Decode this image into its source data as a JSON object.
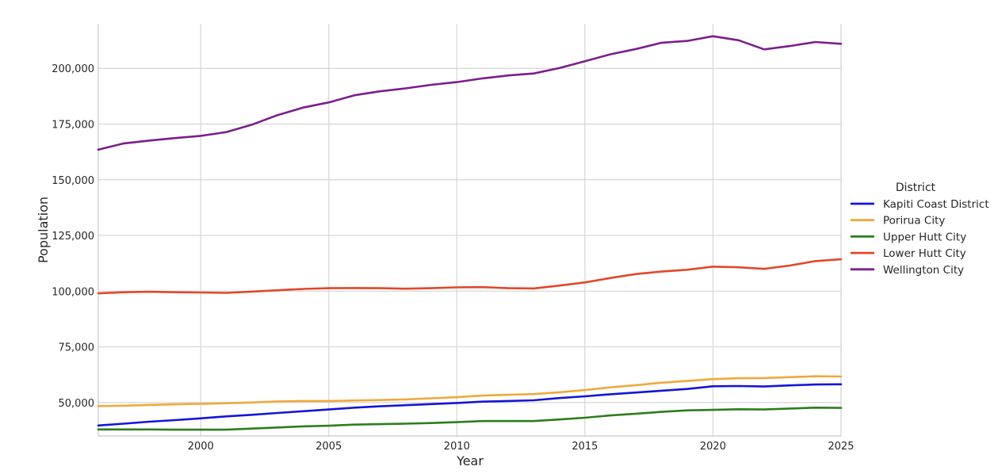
{
  "chart_data": {
    "type": "line",
    "xlabel": "Year",
    "ylabel": "Population",
    "xlim": [
      1996,
      2025
    ],
    "ylim": [
      35000,
      220000
    ],
    "x_ticks": [
      2000,
      2005,
      2010,
      2015,
      2020,
      2025
    ],
    "x_tick_labels": [
      "2000",
      "2005",
      "2010",
      "2015",
      "2020",
      "2025"
    ],
    "y_ticks": [
      50000,
      75000,
      100000,
      125000,
      150000,
      175000,
      200000
    ],
    "y_tick_labels": [
      "50,000",
      "75,000",
      "100,000",
      "125,000",
      "150,000",
      "175,000",
      "200,000"
    ],
    "grid": true,
    "legend": {
      "title": "District",
      "placement": "right"
    },
    "x": [
      1996,
      1997,
      1998,
      1999,
      2000,
      2001,
      2002,
      2003,
      2004,
      2005,
      2006,
      2007,
      2008,
      2009,
      2010,
      2011,
      2012,
      2013,
      2014,
      2015,
      2016,
      2017,
      2018,
      2019,
      2020,
      2021,
      2022,
      2023,
      2024,
      2025
    ],
    "series": [
      {
        "name": "Kapiti Coast District",
        "color": "#1515d6",
        "values": [
          39700,
          40500,
          41400,
          42100,
          42900,
          43800,
          44500,
          45300,
          46100,
          46900,
          47700,
          48300,
          48800,
          49300,
          49800,
          50400,
          50700,
          51000,
          52000,
          52800,
          53700,
          54500,
          55300,
          56100,
          57300,
          57400,
          57200,
          57700,
          58100,
          58200
        ]
      },
      {
        "name": "Porirua City",
        "color": "#f0a83d",
        "values": [
          48400,
          48600,
          48900,
          49200,
          49400,
          49700,
          50000,
          50500,
          50700,
          50700,
          50900,
          51100,
          51400,
          51900,
          52400,
          53100,
          53500,
          53800,
          54600,
          55600,
          56800,
          57800,
          58900,
          59700,
          60500,
          60900,
          61000,
          61400,
          61800,
          61700
        ]
      },
      {
        "name": "Upper Hutt City",
        "color": "#2e7d1e",
        "values": [
          37900,
          37900,
          37900,
          37800,
          37800,
          37800,
          38300,
          38800,
          39300,
          39600,
          40100,
          40300,
          40500,
          40800,
          41200,
          41700,
          41700,
          41700,
          42400,
          43200,
          44200,
          45000,
          45800,
          46500,
          46700,
          47000,
          46900,
          47300,
          47700,
          47600
        ]
      },
      {
        "name": "Lower Hutt City",
        "color": "#e2472b",
        "values": [
          99000,
          99500,
          99700,
          99500,
          99400,
          99200,
          99800,
          100400,
          101000,
          101300,
          101400,
          101300,
          101100,
          101300,
          101700,
          101800,
          101300,
          101200,
          102500,
          103900,
          105900,
          107700,
          108800,
          109600,
          111000,
          110700,
          110000,
          111500,
          113500,
          114300
        ]
      },
      {
        "name": "Wellington City",
        "color": "#7a1f8a",
        "values": [
          163500,
          166300,
          167600,
          168700,
          169700,
          171400,
          174700,
          179000,
          182400,
          184700,
          187900,
          189700,
          191000,
          192600,
          193800,
          195500,
          196800,
          197700,
          200100,
          203200,
          206300,
          208700,
          211500,
          212300,
          214400,
          212600,
          208500,
          210000,
          211800,
          211000
        ]
      }
    ]
  }
}
